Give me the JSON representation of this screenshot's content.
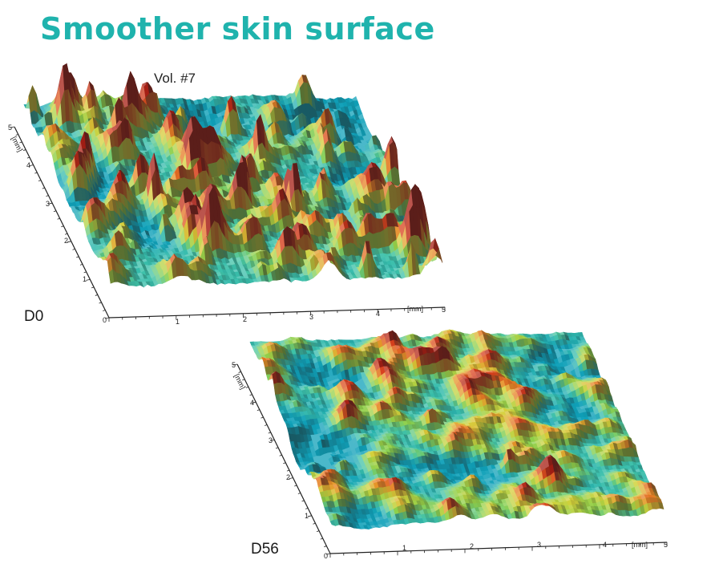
{
  "title": "Smoother skin surface",
  "subtitle": "Vol. #7",
  "colors": {
    "title": "#1fb3ad",
    "palette": [
      "#0fa0b8",
      "#3fc2a8",
      "#8fd04a",
      "#d4d23a",
      "#e88a26",
      "#d8401c",
      "#a41c12"
    ]
  },
  "panels": [
    {
      "label": "D0",
      "roughness": "high",
      "x_axis": {
        "unit": "[mm]",
        "ticks": [
          "0",
          "1",
          "2",
          "3",
          "4",
          "5"
        ]
      },
      "y_axis": {
        "unit": "[mm]",
        "ticks": [
          "1",
          "2",
          "3",
          "4",
          "5"
        ]
      }
    },
    {
      "label": "D56",
      "roughness": "low",
      "x_axis": {
        "unit": "[mm]",
        "ticks": [
          "0",
          "1",
          "2",
          "3",
          "4",
          "5"
        ]
      },
      "y_axis": {
        "unit": "[mm]",
        "ticks": [
          "1",
          "2",
          "3",
          "4",
          "5"
        ]
      }
    }
  ]
}
